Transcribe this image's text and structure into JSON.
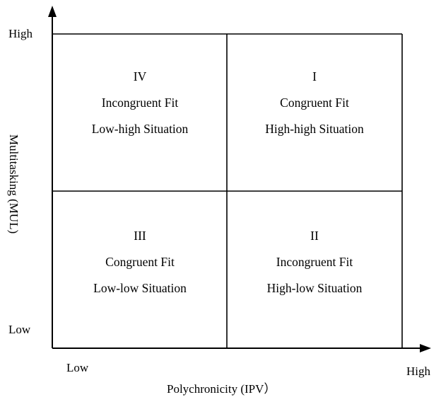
{
  "axes": {
    "y_label": "Multitasking (MUL)",
    "x_label": "Polychronicity (IPV）",
    "y_high": "High",
    "y_low": "Low",
    "x_low": "Low",
    "x_high": "High"
  },
  "quadrants": {
    "top_left": {
      "numeral": "IV",
      "fit": "Incongruent Fit",
      "situation": "Low-high Situation"
    },
    "top_right": {
      "numeral": "I",
      "fit": "Congruent Fit",
      "situation": "High-high Situation"
    },
    "bottom_left": {
      "numeral": "III",
      "fit": "Congruent Fit",
      "situation": "Low-low Situation"
    },
    "bottom_right": {
      "numeral": "II",
      "fit": "Incongruent Fit",
      "situation": "High-low Situation"
    }
  },
  "colors": {
    "line": "#000000",
    "text": "#000000",
    "background": "#ffffff"
  }
}
